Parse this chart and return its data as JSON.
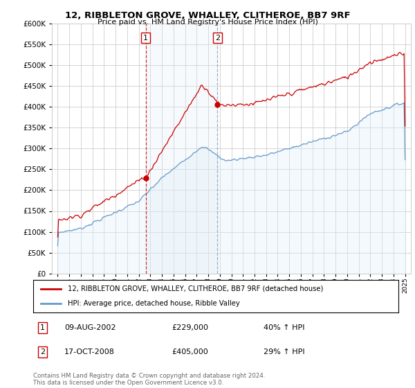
{
  "title": "12, RIBBLETON GROVE, WHALLEY, CLITHEROE, BB7 9RF",
  "subtitle": "Price paid vs. HM Land Registry's House Price Index (HPI)",
  "legend_line1": "12, RIBBLETON GROVE, WHALLEY, CLITHEROE, BB7 9RF (detached house)",
  "legend_line2": "HPI: Average price, detached house, Ribble Valley",
  "sale1_date": "09-AUG-2002",
  "sale1_price": "£229,000",
  "sale1_hpi": "40% ↑ HPI",
  "sale2_date": "17-OCT-2008",
  "sale2_price": "£405,000",
  "sale2_hpi": "29% ↑ HPI",
  "footnote": "Contains HM Land Registry data © Crown copyright and database right 2024.\nThis data is licensed under the Open Government Licence v3.0.",
  "sale1_x": 2002.6,
  "sale2_x": 2008.79,
  "sale1_y": 229000,
  "sale2_y": 405000,
  "hpi_color": "#6699cc",
  "hpi_fill_color": "#ddeef8",
  "price_color": "#cc0000",
  "vline1_color": "#cc0000",
  "vline2_color": "#8899bb",
  "shade_color": "#ddeef8",
  "ylim": [
    0,
    600000
  ],
  "xlim_start": 1994.5,
  "xlim_end": 2025.5,
  "background_color": "#ffffff",
  "grid_color": "#cccccc"
}
